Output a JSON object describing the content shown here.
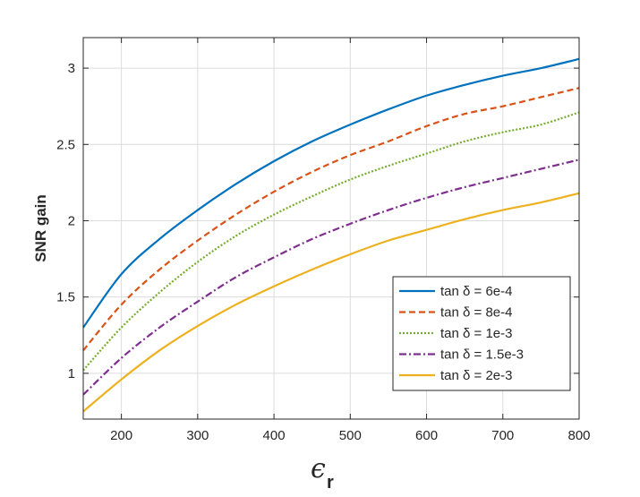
{
  "chart_data": {
    "type": "line",
    "xlabel": "ϵ",
    "xlabel_subscript": "r",
    "ylabel": "SNR gain",
    "xlim": [
      150,
      800
    ],
    "ylim": [
      0.7,
      3.2
    ],
    "xticks": [
      200,
      300,
      400,
      500,
      600,
      700,
      800
    ],
    "yticks": [
      1,
      1.5,
      2,
      2.5,
      3
    ],
    "xtick_labels": [
      "200",
      "300",
      "400",
      "500",
      "600",
      "700",
      "800"
    ],
    "ytick_labels": [
      "1",
      "1.5",
      "2",
      "2.5",
      "3"
    ],
    "grid": true,
    "legend_position": "lower-right",
    "x": [
      150,
      200,
      250,
      300,
      350,
      400,
      450,
      500,
      550,
      600,
      650,
      700,
      750,
      800
    ],
    "series": [
      {
        "name": "tan δ = 6e-4",
        "color": "#0072BD",
        "dash": "solid",
        "values": [
          1.3,
          1.65,
          1.88,
          2.07,
          2.24,
          2.39,
          2.52,
          2.63,
          2.73,
          2.82,
          2.89,
          2.95,
          3.0,
          3.06
        ]
      },
      {
        "name": "tan δ = 8e-4",
        "color": "#D95319",
        "dash": "dashed",
        "values": [
          1.15,
          1.45,
          1.68,
          1.87,
          2.04,
          2.19,
          2.32,
          2.43,
          2.52,
          2.62,
          2.7,
          2.75,
          2.81,
          2.87
        ]
      },
      {
        "name": "tan δ = 1e-3",
        "color": "#77AC30",
        "dash": "dotted",
        "values": [
          1.02,
          1.3,
          1.53,
          1.73,
          1.9,
          2.04,
          2.16,
          2.27,
          2.36,
          2.44,
          2.52,
          2.58,
          2.63,
          2.71
        ]
      },
      {
        "name": "tan δ = 1.5e-3",
        "color": "#7E2F8E",
        "dash": "dashdot",
        "values": [
          0.86,
          1.1,
          1.3,
          1.47,
          1.63,
          1.76,
          1.88,
          1.98,
          2.07,
          2.15,
          2.22,
          2.28,
          2.34,
          2.4
        ]
      },
      {
        "name": "tan δ = 2e-3",
        "color": "#EDB120",
        "dash": "solid",
        "values": [
          0.75,
          0.96,
          1.15,
          1.31,
          1.45,
          1.57,
          1.68,
          1.78,
          1.87,
          1.94,
          2.01,
          2.07,
          2.12,
          2.18
        ]
      }
    ]
  }
}
